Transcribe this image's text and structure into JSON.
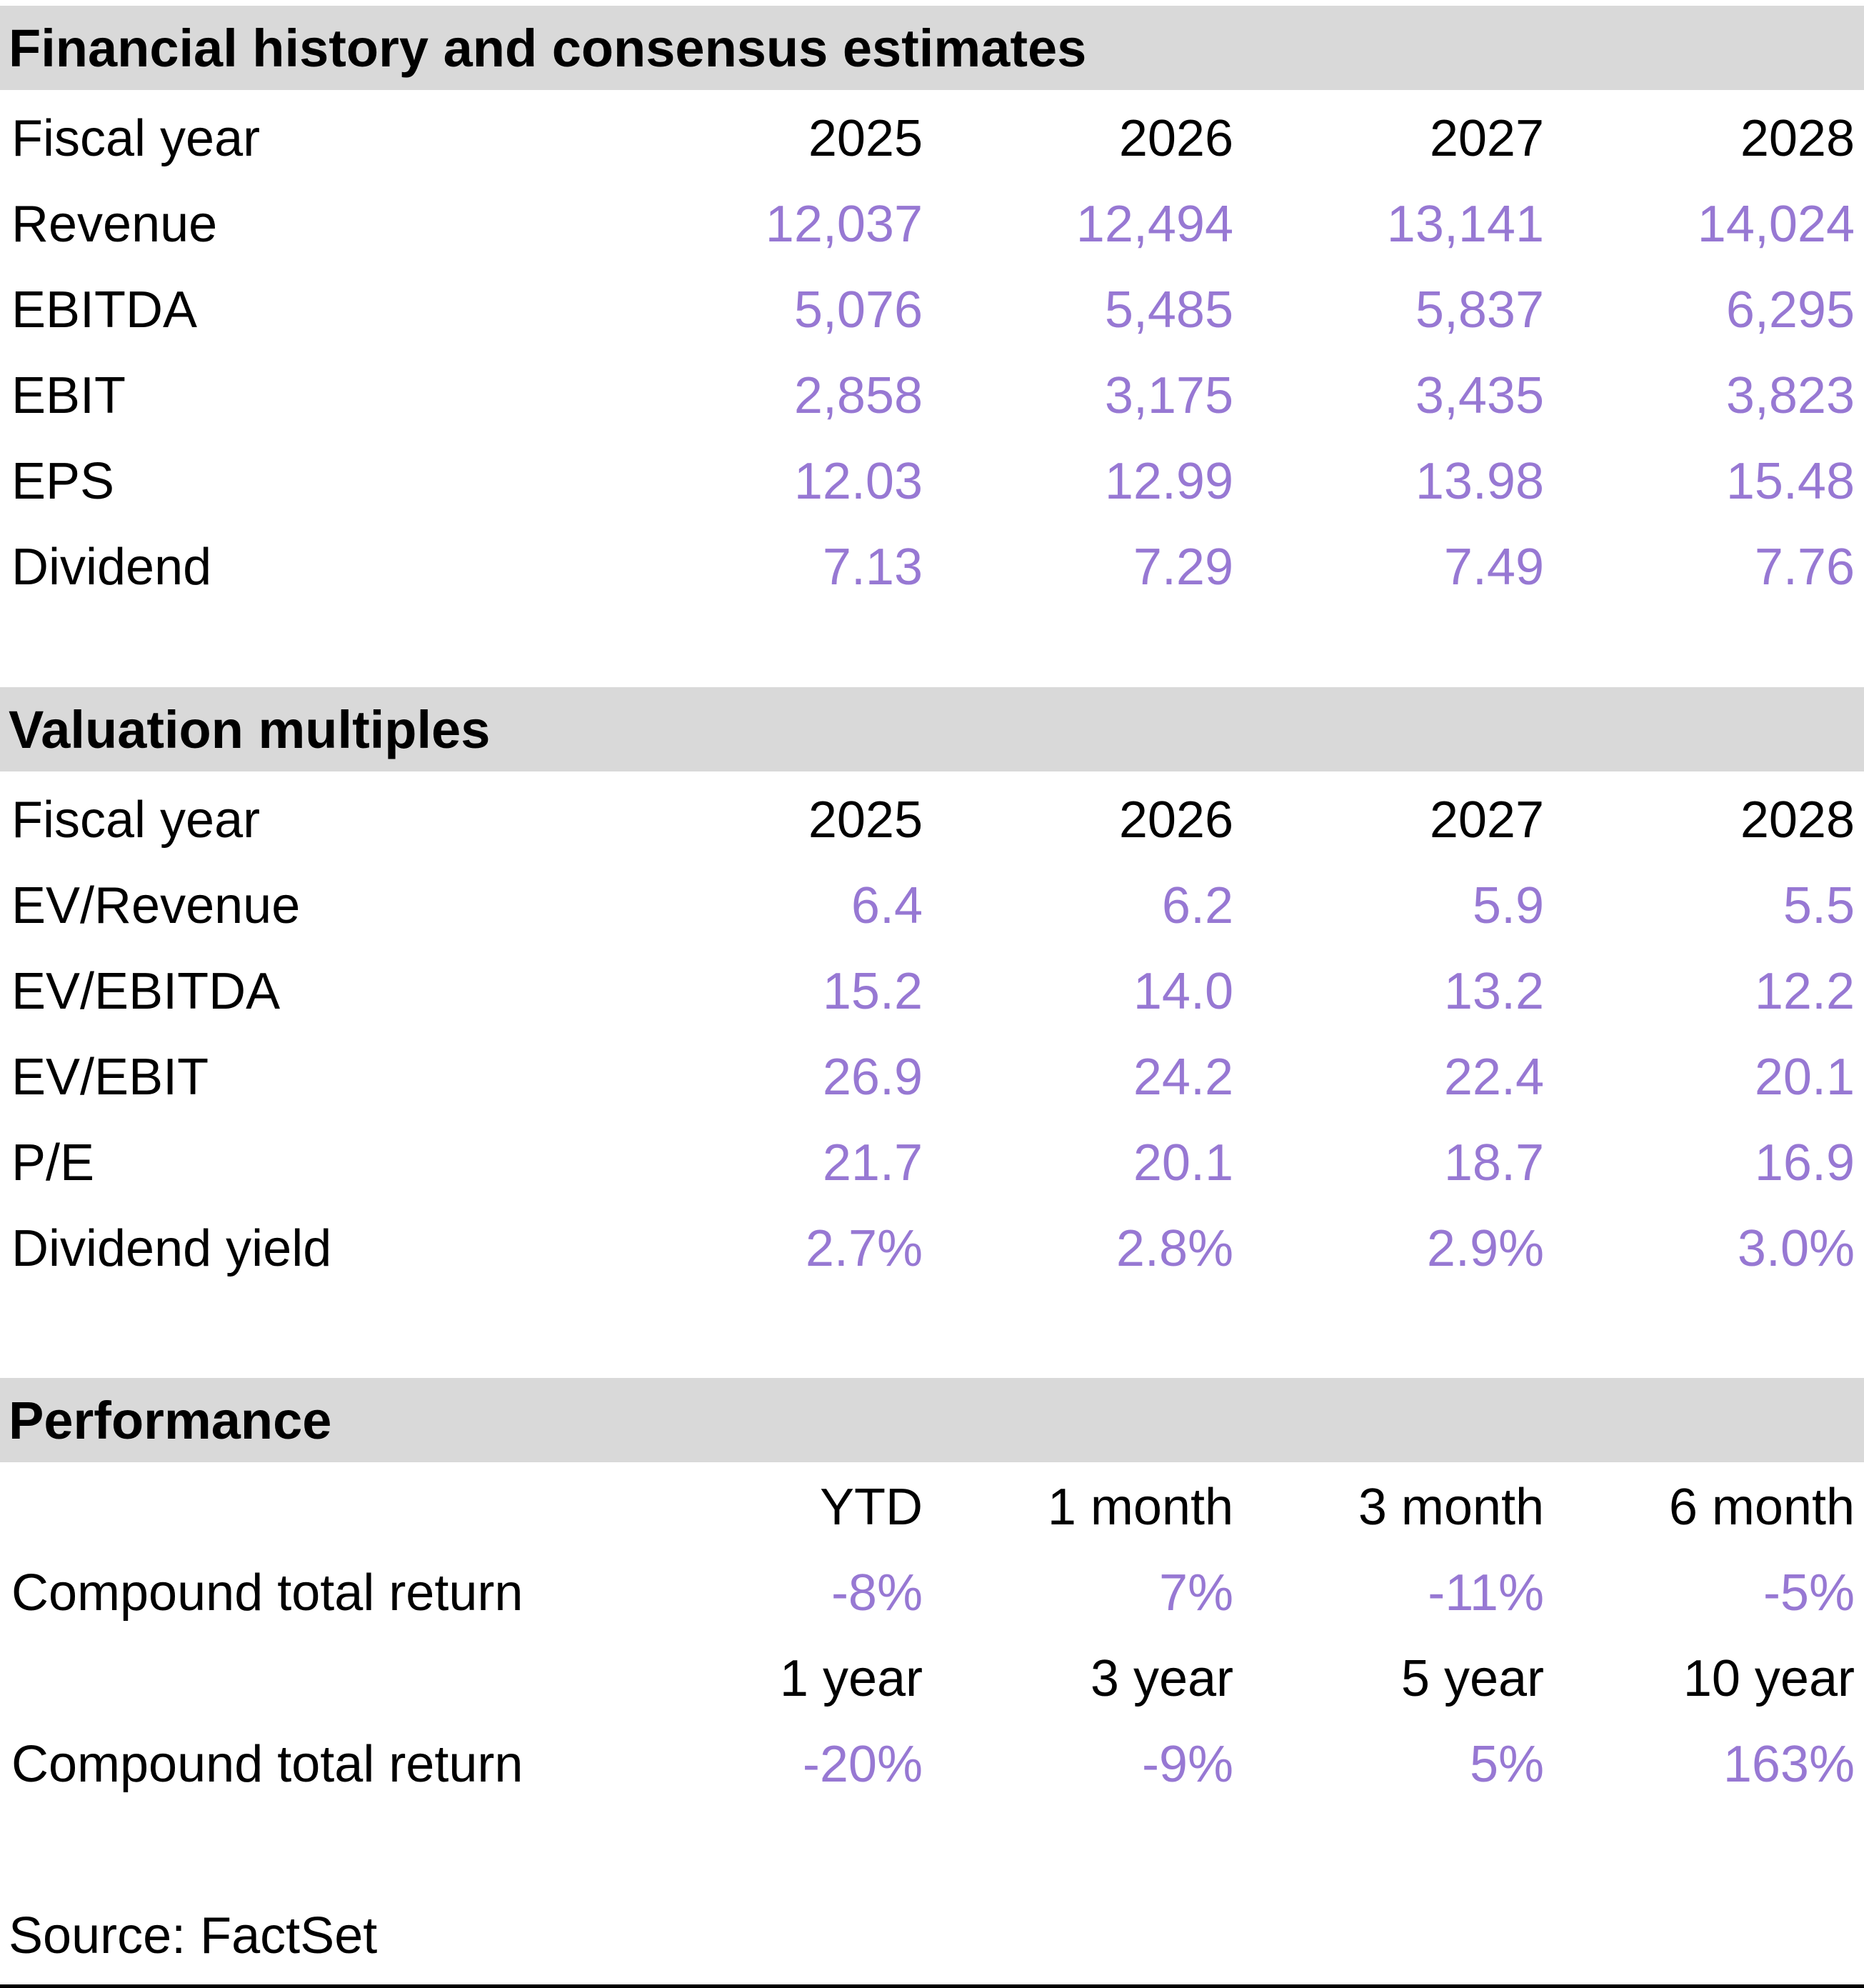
{
  "colors": {
    "accent_purple": "#9778d3",
    "section_band_gray": "#d9d9d9",
    "text_black": "#000000"
  },
  "sections": [
    {
      "title": "Financial history and consensus estimates",
      "header_label": "Fiscal year",
      "columns": [
        "2025",
        "2026",
        "2027",
        "2028"
      ],
      "rows": [
        {
          "label": "Revenue",
          "values": [
            "12,037",
            "12,494",
            "13,141",
            "14,024"
          ]
        },
        {
          "label": "EBITDA",
          "values": [
            "5,076",
            "5,485",
            "5,837",
            "6,295"
          ]
        },
        {
          "label": "EBIT",
          "values": [
            "2,858",
            "3,175",
            "3,435",
            "3,823"
          ]
        },
        {
          "label": "EPS",
          "values": [
            "12.03",
            "12.99",
            "13.98",
            "15.48"
          ]
        },
        {
          "label": "Dividend",
          "values": [
            "7.13",
            "7.29",
            "7.49",
            "7.76"
          ]
        }
      ]
    },
    {
      "title": "Valuation multiples",
      "header_label": "Fiscal year",
      "columns": [
        "2025",
        "2026",
        "2027",
        "2028"
      ],
      "rows": [
        {
          "label": "EV/Revenue",
          "values": [
            "6.4",
            "6.2",
            "5.9",
            "5.5"
          ]
        },
        {
          "label": "EV/EBITDA",
          "values": [
            "15.2",
            "14.0",
            "13.2",
            "12.2"
          ]
        },
        {
          "label": "EV/EBIT",
          "values": [
            "26.9",
            "24.2",
            "22.4",
            "20.1"
          ]
        },
        {
          "label": "P/E",
          "values": [
            "21.7",
            "20.1",
            "18.7",
            "16.9"
          ]
        },
        {
          "label": "Dividend yield",
          "values": [
            "2.7%",
            "2.8%",
            "2.9%",
            "3.0%"
          ]
        }
      ]
    },
    {
      "title": "Performance",
      "groups": [
        {
          "columns": [
            "YTD",
            "1 month",
            "3 month",
            "6 month"
          ],
          "row": {
            "label": "Compound total return",
            "values": [
              "-8%",
              "7%",
              "-11%",
              "-5%"
            ]
          }
        },
        {
          "columns": [
            "1 year",
            "3 year",
            "5 year",
            "10 year"
          ],
          "row": {
            "label": "Compound total return",
            "values": [
              "-20%",
              "-9%",
              "5%",
              "163%"
            ]
          }
        }
      ]
    }
  ],
  "source": "Source: FactSet"
}
